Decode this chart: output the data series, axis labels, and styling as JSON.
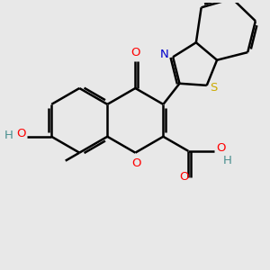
{
  "bg_color": "#e8e8e8",
  "bond_color": "#000000",
  "bond_width": 1.8,
  "atom_colors": {
    "O": "#ff0000",
    "N": "#0000cc",
    "S": "#ccaa00",
    "HO": "#4a9090",
    "C": "#000000"
  },
  "font_size": 9.5,
  "fig_bg": "#e8e8e8"
}
